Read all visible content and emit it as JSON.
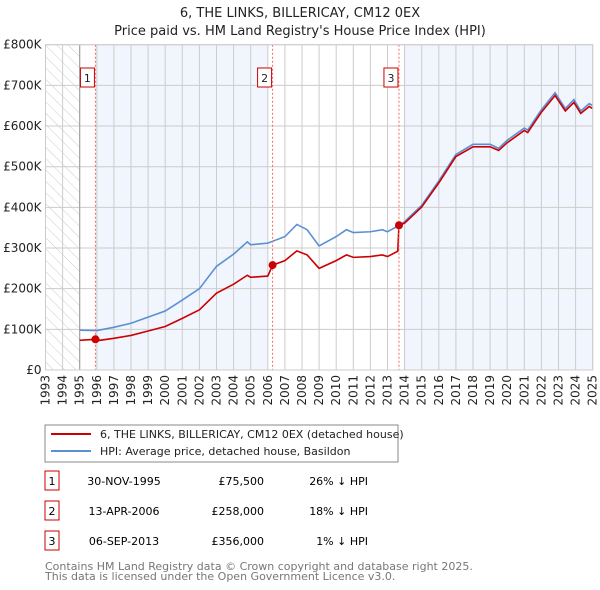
{
  "chart_data": {
    "type": "line",
    "title": "6, THE LINKS, BILLERICAY, CM12 0EX",
    "subtitle": "Price paid vs. HM Land Registry's House Price Index (HPI)",
    "xlim": [
      1993,
      2025
    ],
    "ylim": [
      0,
      800000
    ],
    "x_ticks": [
      "1993",
      "1994",
      "1995",
      "1996",
      "1997",
      "1998",
      "1999",
      "2000",
      "2001",
      "2002",
      "2003",
      "2004",
      "2005",
      "2006",
      "2007",
      "2008",
      "2009",
      "2010",
      "2011",
      "2012",
      "2013",
      "2014",
      "2015",
      "2016",
      "2017",
      "2018",
      "2019",
      "2020",
      "2021",
      "2022",
      "2023",
      "2024",
      "2025"
    ],
    "y_ticks": [
      {
        "v": 0,
        "label": "£0"
      },
      {
        "v": 100000,
        "label": "£100K"
      },
      {
        "v": 200000,
        "label": "£200K"
      },
      {
        "v": 300000,
        "label": "£300K"
      },
      {
        "v": 400000,
        "label": "£400K"
      },
      {
        "v": 500000,
        "label": "£500K"
      },
      {
        "v": 600000,
        "label": "£600K"
      },
      {
        "v": 700000,
        "label": "£700K"
      },
      {
        "v": 800000,
        "label": "£800K"
      }
    ],
    "grid": true,
    "series": [
      {
        "name": "6, THE LINKS, BILLERICAY, CM12 0EX (detached house)",
        "color": "#cc0000",
        "x": [
          1995,
          1995.92,
          1996,
          1997,
          1998,
          1999,
          2000,
          2001,
          2002,
          2003,
          2004,
          2004.8,
          2005,
          2006,
          2006.28,
          2007,
          2007.7,
          2008.3,
          2009,
          2010,
          2010.6,
          2011,
          2012,
          2012.7,
          2013,
          2013.6,
          2013.67,
          2014,
          2015,
          2016,
          2017,
          2018,
          2019,
          2019.5,
          2020,
          2021,
          2021.2,
          2022,
          2022.8,
          2023.4,
          2023.9,
          2024.3,
          2024.8,
          2025
        ],
        "y": [
          73000,
          75500,
          72000,
          78000,
          85000,
          96000,
          107000,
          127000,
          148000,
          189000,
          211000,
          233000,
          228000,
          231000,
          258000,
          269000,
          293000,
          283000,
          250000,
          269000,
          283000,
          277000,
          279000,
          283000,
          279000,
          292000,
          356000,
          361000,
          401000,
          460000,
          525000,
          549000,
          549000,
          540000,
          559000,
          589000,
          584000,
          634000,
          675000,
          637000,
          658000,
          631000,
          648000,
          643000
        ]
      },
      {
        "name": "HPI: Average price, detached house, Basildon",
        "color": "#5b8fd4",
        "x": [
          1995,
          1996,
          1997,
          1998,
          1999,
          2000,
          2001,
          2002,
          2003,
          2004,
          2004.8,
          2005,
          2006,
          2007,
          2007.7,
          2008.3,
          2009,
          2010,
          2010.6,
          2011,
          2012,
          2012.7,
          2013,
          2013.7,
          2014,
          2015,
          2016,
          2017,
          2018,
          2019,
          2019.5,
          2020,
          2021,
          2021.2,
          2022,
          2022.8,
          2023.4,
          2023.9,
          2024.3,
          2024.8,
          2025
        ],
        "y": [
          98000,
          97000,
          105000,
          115000,
          130000,
          145000,
          172000,
          200000,
          255000,
          285000,
          315000,
          308000,
          312000,
          328000,
          358000,
          345000,
          305000,
          328000,
          345000,
          338000,
          340000,
          345000,
          340000,
          356000,
          365000,
          405000,
          465000,
          530000,
          555000,
          555000,
          545000,
          565000,
          595000,
          590000,
          640000,
          682000,
          643000,
          665000,
          637000,
          655000,
          650000
        ]
      }
    ],
    "sales": [
      {
        "n": "1",
        "x": 1995.92,
        "y": 75500
      },
      {
        "n": "2",
        "x": 2006.28,
        "y": 258000
      },
      {
        "n": "3",
        "x": 2013.67,
        "y": 356000
      }
    ],
    "shaded": [
      [
        1995.92,
        2006.0
      ],
      [
        2013.95,
        2025
      ]
    ],
    "hatched": [
      1993,
      1995
    ]
  },
  "legend": {
    "items": [
      "6, THE LINKS, BILLERICAY, CM12 0EX (detached house)",
      "HPI: Average price, detached house, Basildon"
    ]
  },
  "table": [
    {
      "n": "1",
      "date": "30-NOV-1995",
      "price": "£75,500",
      "hpi": "26% ↓ HPI"
    },
    {
      "n": "2",
      "date": "13-APR-2006",
      "price": "£258,000",
      "hpi": "18% ↓ HPI"
    },
    {
      "n": "3",
      "date": "06-SEP-2013",
      "price": "£356,000",
      "hpi": "1% ↓ HPI"
    }
  ],
  "footer": [
    "Contains HM Land Registry data © Crown copyright and database right 2025.",
    "This data is licensed under the Open Government Licence v3.0."
  ]
}
